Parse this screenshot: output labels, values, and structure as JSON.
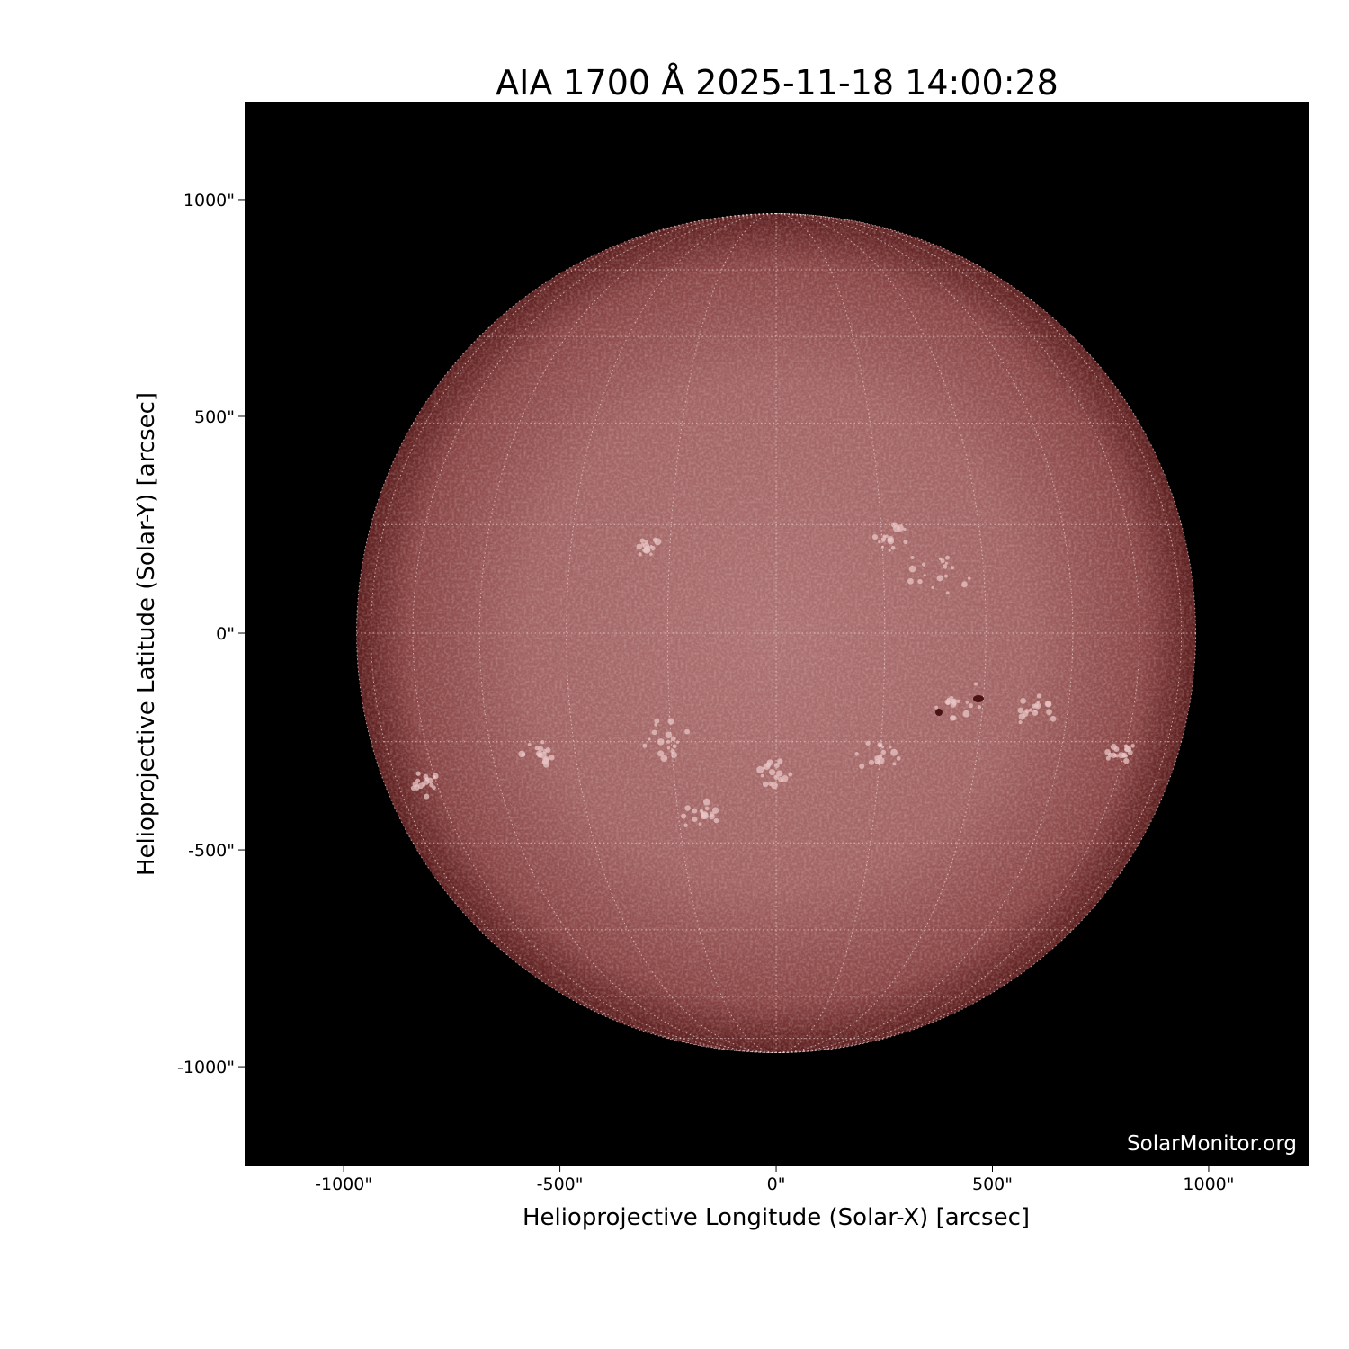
{
  "chart_data": {
    "type": "image",
    "title": "AIA 1700 Å 2025-11-18 14:00:28",
    "xlabel": "Helioprojective Longitude (Solar-X) [arcsec]",
    "ylabel": "Helioprojective Latitude (Solar-Y) [arcsec]",
    "xlim": [
      -1229,
      1233
    ],
    "ylim": [
      -1228,
      1226
    ],
    "xticks": [
      {
        "value": -1000,
        "label": "-1000\""
      },
      {
        "value": -500,
        "label": "-500\""
      },
      {
        "value": 0,
        "label": "0\""
      },
      {
        "value": 500,
        "label": "500\""
      },
      {
        "value": 1000,
        "label": "1000\""
      }
    ],
    "yticks": [
      {
        "value": 1000,
        "label": "1000\""
      },
      {
        "value": 500,
        "label": "500\""
      },
      {
        "value": 0,
        "label": "0\""
      },
      {
        "value": -500,
        "label": "-500\""
      },
      {
        "value": -1000,
        "label": "-1000\""
      }
    ],
    "solar_radius_arcsec": 970,
    "grid_spacing_deg": 15,
    "colormap": "sdoaia1700",
    "colors": {
      "background": "#000000",
      "disk_center": "#ad7272",
      "disk_limb": "#5e2020",
      "grid": "#f2dada"
    },
    "watermark": "SolarMonitor.org"
  }
}
